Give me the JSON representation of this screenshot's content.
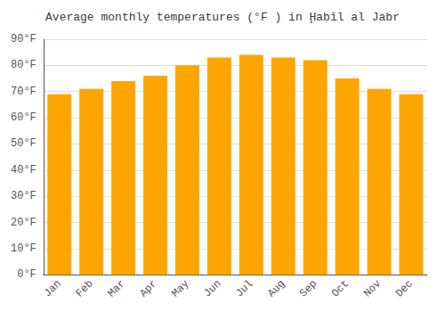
{
  "chart_data": {
    "type": "bar",
    "title": "Average monthly temperatures (°F ) in Ḩabīl al Jabr",
    "categories": [
      "Jan",
      "Feb",
      "Mar",
      "Apr",
      "May",
      "Jun",
      "Jul",
      "Aug",
      "Sep",
      "Oct",
      "Nov",
      "Dec"
    ],
    "values": [
      69,
      71,
      74,
      76,
      80,
      83,
      84,
      83,
      82,
      75,
      71,
      69
    ],
    "color": "#FFA500",
    "ylim": [
      0,
      90
    ],
    "yticks": [
      {
        "value": 0,
        "label": "0°F"
      },
      {
        "value": 10,
        "label": "10°F"
      },
      {
        "value": 20,
        "label": "20°F"
      },
      {
        "value": 30,
        "label": "30°F"
      },
      {
        "value": 40,
        "label": "40°F"
      },
      {
        "value": 50,
        "label": "50°F"
      },
      {
        "value": 60,
        "label": "60°F"
      },
      {
        "value": 70,
        "label": "70°F"
      },
      {
        "value": 80,
        "label": "80°F"
      },
      {
        "value": 90,
        "label": "90°F"
      }
    ],
    "grid": true
  }
}
